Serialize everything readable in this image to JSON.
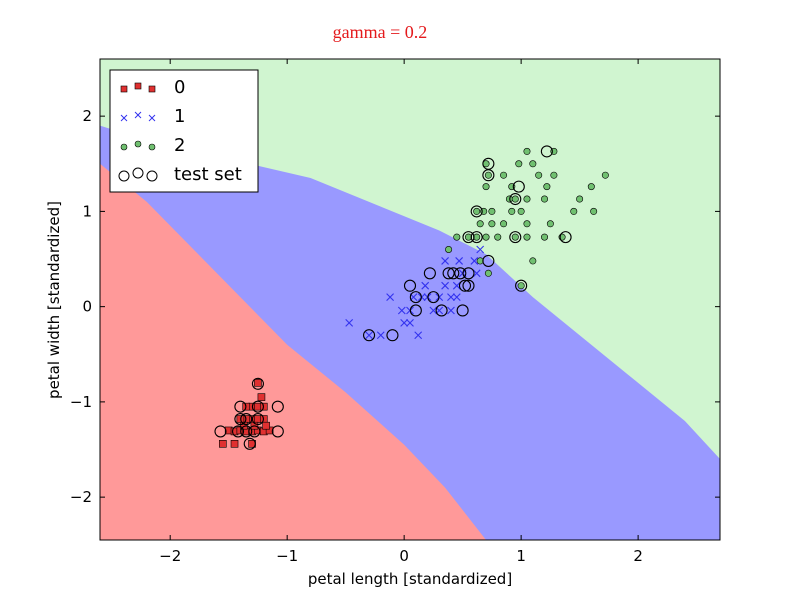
{
  "chart_data": {
    "type": "scatter",
    "title": "gamma = 0.2",
    "title_color": "#e41a1c",
    "xlabel": "petal length [standardized]",
    "ylabel": "petal width [standardized]",
    "xlim": [
      -2.6,
      2.7
    ],
    "ylim": [
      -2.45,
      2.6
    ],
    "xticks": [
      -2,
      -1,
      0,
      1,
      2
    ],
    "xtick_labels": [
      "−2",
      "−1",
      "0",
      "1",
      "2"
    ],
    "yticks": [
      -2,
      -1,
      0,
      1,
      2
    ],
    "ytick_labels": [
      "−2",
      "−1",
      "0",
      "1",
      "2"
    ],
    "grid": false,
    "legend_position": "top-left",
    "decision_regions": [
      {
        "class": "0",
        "color": "#ff9999"
      },
      {
        "class": "1",
        "color": "#9999ff"
      },
      {
        "class": "2",
        "color": "#d0f5d0"
      }
    ],
    "series": [
      {
        "name": "0",
        "marker": "square",
        "color": "#e03030",
        "points": [
          [
            -1.5,
            -1.3
          ],
          [
            -1.45,
            -1.31
          ],
          [
            -1.4,
            -1.3
          ],
          [
            -1.35,
            -1.31
          ],
          [
            -1.3,
            -1.31
          ],
          [
            -1.25,
            -1.3
          ],
          [
            -1.2,
            -1.31
          ],
          [
            -1.15,
            -1.3
          ],
          [
            -1.3,
            -1.18
          ],
          [
            -1.25,
            -1.18
          ],
          [
            -1.35,
            -1.18
          ],
          [
            -1.4,
            -1.18
          ],
          [
            -1.2,
            -1.18
          ],
          [
            -1.3,
            -1.05
          ],
          [
            -1.25,
            -1.05
          ],
          [
            -1.2,
            -1.05
          ],
          [
            -1.35,
            -1.05
          ],
          [
            -1.3,
            -1.44
          ],
          [
            -1.45,
            -1.44
          ],
          [
            -1.55,
            -1.44
          ],
          [
            -1.22,
            -0.95
          ],
          [
            -1.25,
            -0.8
          ],
          [
            -1.37,
            -1.25
          ],
          [
            -1.28,
            -1.25
          ],
          [
            -1.18,
            -1.25
          ]
        ]
      },
      {
        "name": "1",
        "marker": "x",
        "color": "#3333ee",
        "points": [
          [
            -0.47,
            -0.17
          ],
          [
            -0.3,
            -0.3
          ],
          [
            -0.2,
            -0.3
          ],
          [
            -0.12,
            0.1
          ],
          [
            0.0,
            -0.17
          ],
          [
            0.05,
            -0.17
          ],
          [
            0.08,
            0.1
          ],
          [
            0.12,
            -0.3
          ],
          [
            0.15,
            0.1
          ],
          [
            0.2,
            0.1
          ],
          [
            0.25,
            -0.04
          ],
          [
            0.3,
            0.1
          ],
          [
            0.35,
            0.22
          ],
          [
            0.4,
            0.1
          ],
          [
            0.45,
            0.1
          ],
          [
            0.5,
            0.35
          ],
          [
            0.35,
            0.48
          ],
          [
            0.47,
            0.48
          ],
          [
            0.6,
            0.48
          ],
          [
            0.62,
            0.35
          ],
          [
            0.65,
            0.6
          ],
          [
            0.05,
            -0.04
          ],
          [
            0.3,
            -0.04
          ],
          [
            0.4,
            -0.04
          ],
          [
            0.45,
            0.22
          ],
          [
            -0.02,
            -0.04
          ],
          [
            0.18,
            0.22
          ]
        ]
      },
      {
        "name": "2",
        "marker": "circle",
        "color": "#70c070",
        "points": [
          [
            0.38,
            0.6
          ],
          [
            0.45,
            0.73
          ],
          [
            0.55,
            0.73
          ],
          [
            0.62,
            0.73
          ],
          [
            0.7,
            0.73
          ],
          [
            0.8,
            0.73
          ],
          [
            0.95,
            0.73
          ],
          [
            1.05,
            0.73
          ],
          [
            1.2,
            0.73
          ],
          [
            1.35,
            0.73
          ],
          [
            0.65,
            0.87
          ],
          [
            0.75,
            0.87
          ],
          [
            0.85,
            0.87
          ],
          [
            1.05,
            0.87
          ],
          [
            1.25,
            0.87
          ],
          [
            0.62,
            1.0
          ],
          [
            0.68,
            1.0
          ],
          [
            0.75,
            1.0
          ],
          [
            0.92,
            1.0
          ],
          [
            1.0,
            1.0
          ],
          [
            1.45,
            1.0
          ],
          [
            1.62,
            1.0
          ],
          [
            0.9,
            1.13
          ],
          [
            0.95,
            1.13
          ],
          [
            1.05,
            1.13
          ],
          [
            1.2,
            1.13
          ],
          [
            1.5,
            1.13
          ],
          [
            0.7,
            1.26
          ],
          [
            0.92,
            1.26
          ],
          [
            1.22,
            1.26
          ],
          [
            1.6,
            1.26
          ],
          [
            0.72,
            1.38
          ],
          [
            0.85,
            1.38
          ],
          [
            1.15,
            1.38
          ],
          [
            1.28,
            1.38
          ],
          [
            1.72,
            1.38
          ],
          [
            0.7,
            1.5
          ],
          [
            0.98,
            1.5
          ],
          [
            1.1,
            1.5
          ],
          [
            1.05,
            1.63
          ],
          [
            1.28,
            1.63
          ],
          [
            0.65,
            0.48
          ],
          [
            0.72,
            0.35
          ],
          [
            1.1,
            0.48
          ],
          [
            1.0,
            0.22
          ]
        ]
      },
      {
        "name": "test set",
        "marker": "open-circle",
        "color": "#000000",
        "points": [
          [
            -1.57,
            -1.31
          ],
          [
            -1.42,
            -1.31
          ],
          [
            -1.35,
            -1.31
          ],
          [
            -1.28,
            -1.31
          ],
          [
            -1.08,
            -1.31
          ],
          [
            -1.4,
            -1.18
          ],
          [
            -1.35,
            -1.18
          ],
          [
            -1.25,
            -1.18
          ],
          [
            -1.4,
            -1.05
          ],
          [
            -1.25,
            -1.05
          ],
          [
            -1.08,
            -1.05
          ],
          [
            -1.25,
            -0.81
          ],
          [
            -1.32,
            -1.44
          ],
          [
            -0.3,
            -0.3
          ],
          [
            -0.1,
            -0.3
          ],
          [
            0.05,
            0.22
          ],
          [
            0.1,
            0.1
          ],
          [
            0.1,
            -0.04
          ],
          [
            0.22,
            0.35
          ],
          [
            0.25,
            0.1
          ],
          [
            0.32,
            -0.04
          ],
          [
            0.38,
            0.35
          ],
          [
            0.42,
            0.35
          ],
          [
            0.48,
            0.35
          ],
          [
            0.5,
            -0.04
          ],
          [
            0.52,
            0.22
          ],
          [
            0.55,
            0.35
          ],
          [
            0.55,
            0.22
          ],
          [
            0.72,
            0.48
          ],
          [
            0.55,
            0.73
          ],
          [
            0.62,
            0.73
          ],
          [
            0.95,
            0.73
          ],
          [
            1.38,
            0.73
          ],
          [
            0.62,
            1.0
          ],
          [
            0.95,
            1.13
          ],
          [
            0.98,
            1.26
          ],
          [
            0.72,
            1.38
          ],
          [
            0.72,
            1.5
          ],
          [
            1.22,
            1.63
          ],
          [
            1.0,
            0.22
          ]
        ]
      }
    ],
    "legend": [
      "0",
      "1",
      "2",
      "test set"
    ]
  }
}
